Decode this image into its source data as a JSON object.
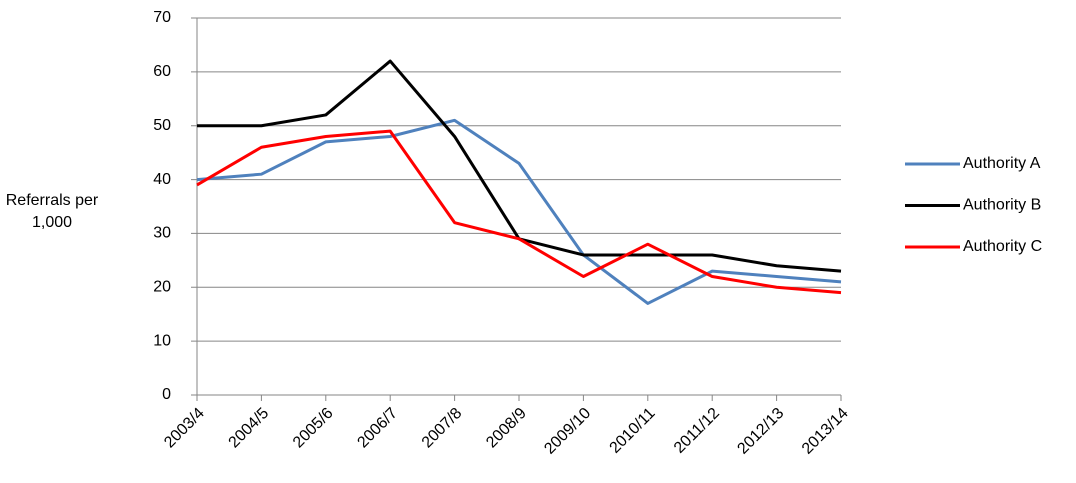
{
  "chart_data": {
    "type": "line",
    "y_label": "Referrals per 1,000",
    "categories": [
      "2003/4",
      "2004/5",
      "2005/6",
      "2006/7",
      "2007/8",
      "2008/9",
      "2009/10",
      "2010/11",
      "2011/12",
      "2012/13",
      "2013/14"
    ],
    "series": [
      {
        "name": "Authority A",
        "color": "#4f81bd",
        "values": [
          40,
          41,
          47,
          48,
          51,
          43,
          26,
          17,
          23,
          22,
          21
        ]
      },
      {
        "name": "Authority B",
        "color": "#000000",
        "values": [
          50,
          50,
          52,
          62,
          48,
          29,
          26,
          26,
          26,
          24,
          23
        ]
      },
      {
        "name": "Authority C",
        "color": "#ff0000",
        "values": [
          39,
          46,
          48,
          49,
          32,
          29,
          22,
          28,
          22,
          20,
          19
        ]
      }
    ],
    "ylim": [
      0,
      70
    ],
    "yticks": [
      0,
      10,
      20,
      30,
      40,
      50,
      60,
      70
    ],
    "grid": true,
    "legend": "right"
  }
}
